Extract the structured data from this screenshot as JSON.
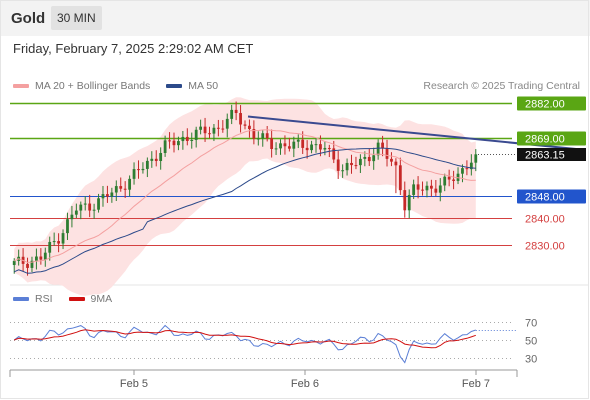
{
  "header": {
    "title": "Gold",
    "timeframe": "30 MIN",
    "datetime": "Friday, February 7, 2025 2:29:02 AM CET",
    "credit": "Research © 2025 Trading Central"
  },
  "legend_main": [
    {
      "label": "MA 20 + Bollinger Bands",
      "color": "#f4a0a0"
    },
    {
      "label": "MA 50",
      "color": "#2c4a8a"
    }
  ],
  "legend_rsi": [
    {
      "label": "RSI",
      "color": "#5b7fd6"
    },
    {
      "label": "9MA",
      "color": "#d01010"
    }
  ],
  "colors": {
    "up": "#2e7d32",
    "down": "#c62828",
    "resistance": "#5aa614",
    "pivot": "#2255cc",
    "support": "#d44040",
    "bollinger_fill": "#fde2e2",
    "ma50": "#2c4a8a",
    "ma20": "#f4a0a0",
    "arrow": "#2e5aa0"
  },
  "chart_data": [
    {
      "type": "candlestick",
      "price_range": [
        2816,
        2886
      ],
      "levels": [
        {
          "label": "2882.00",
          "value": 2882.0,
          "kind": "resistance"
        },
        {
          "label": "2869.00",
          "value": 2869.0,
          "kind": "resistance"
        },
        {
          "label": "2863.15",
          "value": 2863.15,
          "kind": "last"
        },
        {
          "label": "2848.00",
          "value": 2848.0,
          "kind": "pivot"
        },
        {
          "label": "2840.00",
          "value": 2840.0,
          "kind": "support"
        },
        {
          "label": "2830.00",
          "value": 2830.0,
          "kind": "support"
        }
      ],
      "x_ticks": [
        "Feb 5",
        "Feb 6",
        "Feb 7"
      ],
      "trendline": {
        "from": [
          2.0,
          2877
        ],
        "to": [
          4.9,
          2865
        ]
      },
      "forecast_arrow": {
        "from": [
          5.15,
          2864
        ],
        "to": [
          5.45,
          2880
        ]
      }
    },
    {
      "type": "line",
      "name": "RSI",
      "y_ticks": [
        70,
        50,
        30
      ]
    }
  ]
}
